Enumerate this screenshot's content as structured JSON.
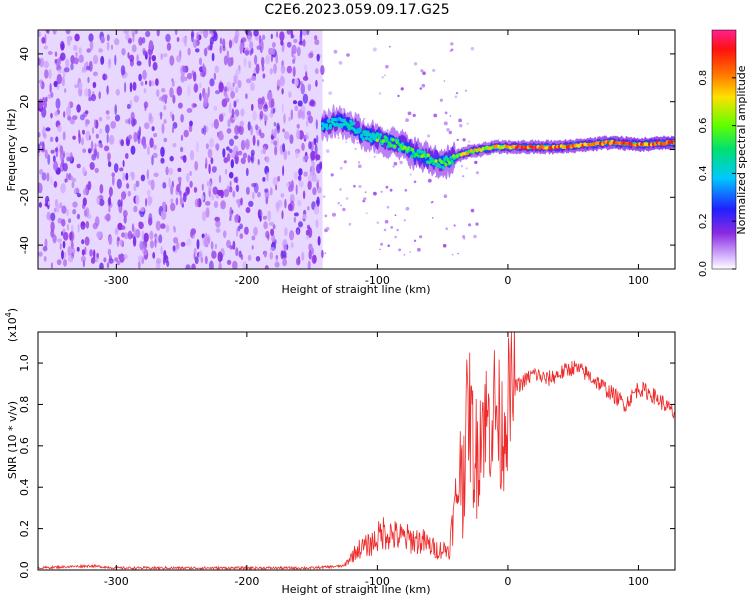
{
  "title": "C2E6.2023.059.09.17.G25",
  "colors": {
    "snr_line": "#ee2a2a",
    "spectrogram_noise": "#7a2cff",
    "frame": "#000000"
  },
  "colorbar": {
    "label": "Normalized spectral amplitude",
    "ticks": [
      "0.0",
      "0.2",
      "0.4",
      "0.6",
      "0.8"
    ],
    "range": [
      0,
      1
    ],
    "colormap": "rainbow (white-violet-blue-cyan-green-yellow-red-magenta)"
  },
  "chart_data": [
    {
      "type": "heatmap",
      "title": "C2E6.2023.059.09.17.G25",
      "xlabel": "Height of straight line (km)",
      "ylabel": "Frequency (Hz)",
      "xlim": [
        -360,
        128
      ],
      "ylim": [
        -50,
        50
      ],
      "x_ticks": [
        "-300",
        "-200",
        "-100",
        "0",
        "100"
      ],
      "y_ticks": [
        "-40",
        "-20",
        "0",
        "20",
        "40"
      ],
      "noise_region_x": [
        -360,
        -142
      ],
      "signal_trace": {
        "x": [
          -142,
          -130,
          -120,
          -110,
          -100,
          -90,
          -80,
          -70,
          -60,
          -50,
          -40,
          -30,
          -20,
          -10,
          0,
          20,
          40,
          60,
          80,
          100,
          128
        ],
        "y": [
          10,
          12,
          10,
          6,
          5,
          3,
          1,
          -2,
          -4,
          -6,
          -3,
          -1,
          0,
          1,
          1,
          1,
          1,
          2,
          3,
          2,
          3
        ]
      }
    },
    {
      "type": "line",
      "title": "",
      "xlabel": "Height of straight line (km)",
      "ylabel": "SNR (10 * v/v)",
      "y_scale_label": "(x10",
      "y_scale_exp": "4",
      "xlim": [
        -360,
        128
      ],
      "ylim": [
        0.0,
        1.15
      ],
      "x_ticks": [
        "-300",
        "-200",
        "-100",
        "0",
        "100"
      ],
      "y_ticks": [
        "0.0",
        "0.2",
        "0.4",
        "0.6",
        "0.8",
        "1.0"
      ],
      "series": [
        {
          "x": [
            -360,
            -320,
            -300,
            -250,
            -200,
            -150,
            -125,
            -115,
            -105,
            -95,
            -85,
            -75,
            -65,
            -55,
            -45,
            -35,
            -30,
            -25,
            -20,
            -15,
            -10,
            -5,
            0,
            5,
            10,
            20,
            30,
            40,
            50,
            60,
            70,
            80,
            90,
            100,
            110,
            120,
            128
          ],
          "y": [
            0.01,
            0.02,
            0.01,
            0.01,
            0.01,
            0.01,
            0.02,
            0.08,
            0.1,
            0.15,
            0.13,
            0.12,
            0.11,
            0.08,
            0.08,
            0.45,
            0.8,
            0.5,
            0.75,
            0.7,
            0.8,
            0.65,
            0.8,
            0.88,
            0.9,
            0.95,
            0.92,
            0.95,
            0.98,
            0.95,
            0.9,
            0.85,
            0.8,
            0.88,
            0.85,
            0.8,
            0.75
          ]
        }
      ]
    }
  ]
}
